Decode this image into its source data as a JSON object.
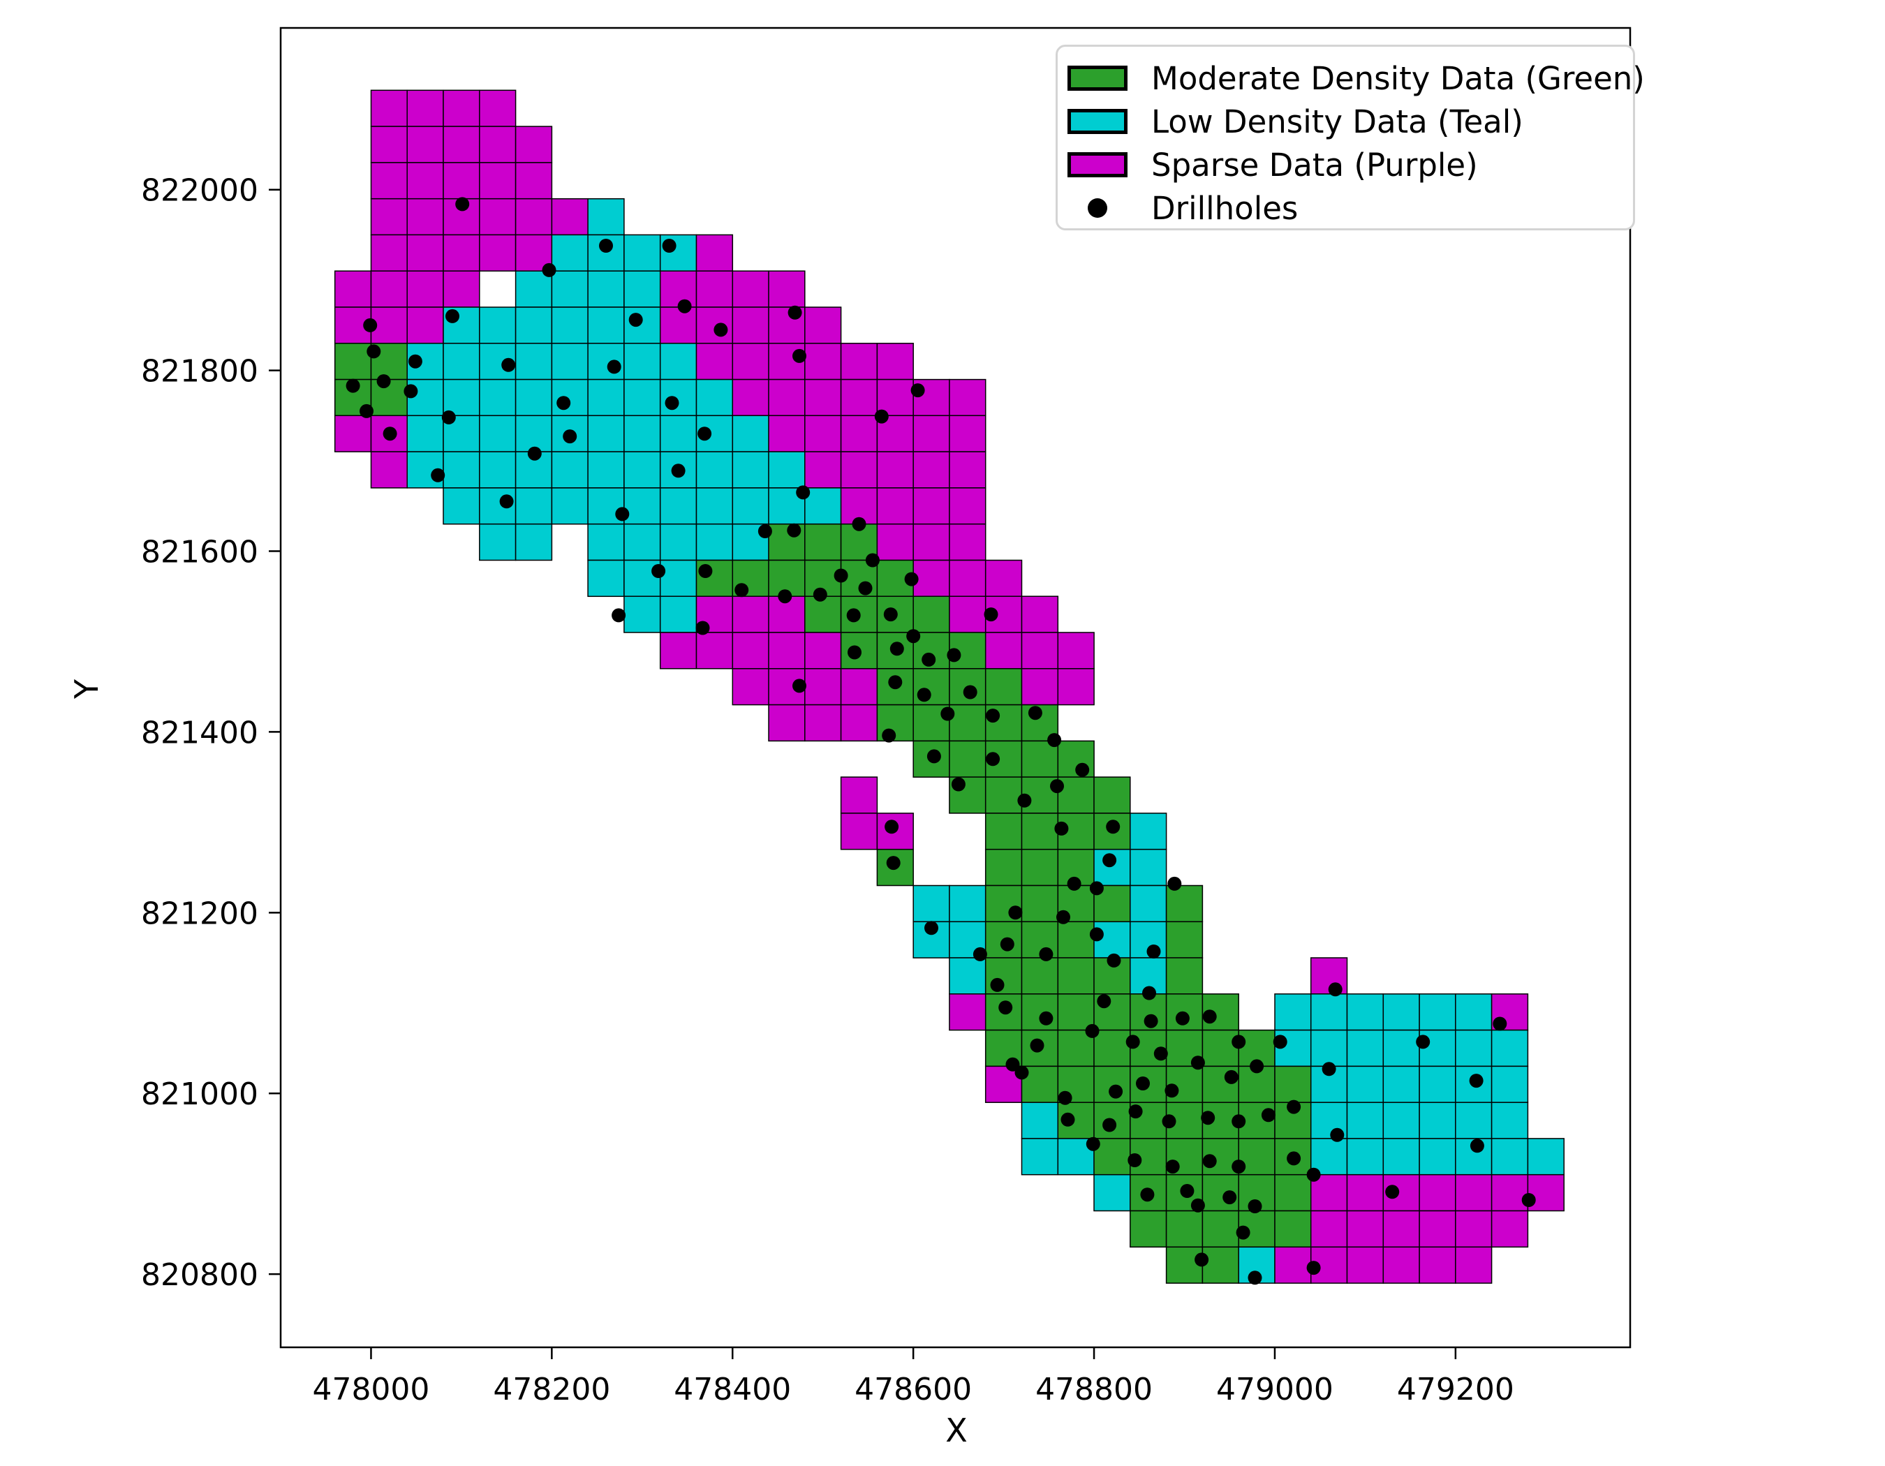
{
  "chart_data": {
    "type": "heatmap",
    "title": "",
    "xlabel": "X",
    "ylabel": "Y",
    "xlim": [
      477900,
      479393
    ],
    "ylim": [
      820709,
      822179
    ],
    "xticks": [
      478000,
      478200,
      478400,
      478600,
      478800,
      479000,
      479200
    ],
    "yticks": [
      820800,
      821000,
      821200,
      821400,
      821600,
      821800,
      822000
    ],
    "grid_origin": {
      "x_left": 477960,
      "y_top": 822110,
      "cell_size": 40
    },
    "legend_position": "upper right",
    "colors": {
      "G": "#2CA02C",
      "T": "#00CDD1",
      "M": "#CC00CC",
      "drillhole": "#000000",
      "cell_edge": "#000000"
    },
    "classes": {
      "G": "Moderate Density Data (Green)",
      "T": "Low Density Data (Teal)",
      "M": "Sparse Data (Purple)"
    },
    "rows": [
      {
        "j": 0,
        "runs": [
          [
            "M",
            1,
            4
          ]
        ]
      },
      {
        "j": 1,
        "runs": [
          [
            "M",
            1,
            5
          ]
        ]
      },
      {
        "j": 2,
        "runs": [
          [
            "M",
            1,
            5
          ]
        ]
      },
      {
        "j": 3,
        "runs": [
          [
            "M",
            1,
            6
          ],
          [
            "T",
            7,
            7
          ]
        ]
      },
      {
        "j": 4,
        "runs": [
          [
            "M",
            1,
            5
          ],
          [
            "T",
            6,
            9
          ],
          [
            "M",
            10,
            10
          ]
        ]
      },
      {
        "j": 5,
        "runs": [
          [
            "M",
            0,
            3
          ],
          [
            "T",
            5,
            8
          ],
          [
            "M",
            9,
            12
          ]
        ]
      },
      {
        "j": 6,
        "runs": [
          [
            "M",
            0,
            2
          ],
          [
            "T",
            3,
            8
          ],
          [
            "M",
            9,
            13
          ]
        ]
      },
      {
        "j": 7,
        "runs": [
          [
            "G",
            0,
            1
          ],
          [
            "T",
            2,
            9
          ],
          [
            "M",
            10,
            15
          ]
        ]
      },
      {
        "j": 8,
        "runs": [
          [
            "G",
            0,
            1
          ],
          [
            "T",
            2,
            10
          ],
          [
            "M",
            11,
            17
          ]
        ]
      },
      {
        "j": 9,
        "runs": [
          [
            "M",
            0,
            1
          ],
          [
            "T",
            2,
            11
          ],
          [
            "M",
            12,
            17
          ]
        ]
      },
      {
        "j": 10,
        "runs": [
          [
            "M",
            1,
            1
          ],
          [
            "T",
            2,
            12
          ],
          [
            "M",
            13,
            17
          ]
        ]
      },
      {
        "j": 11,
        "runs": [
          [
            "T",
            3,
            13
          ],
          [
            "M",
            14,
            17
          ]
        ]
      },
      {
        "j": 12,
        "runs": [
          [
            "T",
            4,
            5
          ],
          [
            "T",
            7,
            11
          ],
          [
            "G",
            12,
            14
          ],
          [
            "M",
            15,
            17
          ]
        ]
      },
      {
        "j": 13,
        "runs": [
          [
            "T",
            7,
            9
          ],
          [
            "G",
            10,
            15
          ],
          [
            "M",
            16,
            18
          ]
        ]
      },
      {
        "j": 14,
        "runs": [
          [
            "T",
            8,
            9
          ],
          [
            "M",
            10,
            12
          ],
          [
            "G",
            13,
            16
          ],
          [
            "M",
            17,
            19
          ]
        ]
      },
      {
        "j": 15,
        "runs": [
          [
            "M",
            9,
            13
          ],
          [
            "G",
            14,
            17
          ],
          [
            "M",
            18,
            20
          ]
        ]
      },
      {
        "j": 16,
        "runs": [
          [
            "M",
            11,
            14
          ],
          [
            "G",
            15,
            18
          ],
          [
            "M",
            19,
            20
          ]
        ]
      },
      {
        "j": 17,
        "runs": [
          [
            "M",
            12,
            14
          ],
          [
            "G",
            15,
            19
          ]
        ]
      },
      {
        "j": 18,
        "runs": [
          [
            "G",
            16,
            20
          ]
        ]
      },
      {
        "j": 19,
        "runs": [
          [
            "M",
            14,
            14
          ],
          [
            "G",
            17,
            21
          ]
        ]
      },
      {
        "j": 20,
        "runs": [
          [
            "M",
            14,
            15
          ],
          [
            "G",
            18,
            21
          ],
          [
            "T",
            22,
            22
          ]
        ]
      },
      {
        "j": 21,
        "runs": [
          [
            "G",
            15,
            15
          ],
          [
            "G",
            18,
            20
          ],
          [
            "T",
            21,
            22
          ]
        ]
      },
      {
        "j": 22,
        "runs": [
          [
            "T",
            16,
            17
          ],
          [
            "G",
            18,
            21
          ],
          [
            "T",
            22,
            22
          ],
          [
            "G",
            23,
            23
          ]
        ]
      },
      {
        "j": 23,
        "runs": [
          [
            "T",
            16,
            17
          ],
          [
            "G",
            18,
            20
          ],
          [
            "T",
            21,
            22
          ],
          [
            "G",
            23,
            23
          ]
        ]
      },
      {
        "j": 24,
        "runs": [
          [
            "T",
            17,
            17
          ],
          [
            "G",
            18,
            21
          ],
          [
            "T",
            22,
            22
          ],
          [
            "G",
            23,
            23
          ],
          [
            "M",
            27,
            27
          ]
        ]
      },
      {
        "j": 25,
        "runs": [
          [
            "M",
            17,
            17
          ],
          [
            "G",
            18,
            24
          ],
          [
            "T",
            26,
            31
          ],
          [
            "M",
            32,
            32
          ]
        ]
      },
      {
        "j": 26,
        "runs": [
          [
            "G",
            18,
            25
          ],
          [
            "T",
            26,
            32
          ]
        ]
      },
      {
        "j": 27,
        "runs": [
          [
            "M",
            18,
            18
          ],
          [
            "G",
            19,
            26
          ],
          [
            "T",
            27,
            32
          ]
        ]
      },
      {
        "j": 28,
        "runs": [
          [
            "T",
            19,
            19
          ],
          [
            "G",
            20,
            26
          ],
          [
            "T",
            27,
            32
          ]
        ]
      },
      {
        "j": 29,
        "runs": [
          [
            "T",
            19,
            20
          ],
          [
            "G",
            21,
            26
          ],
          [
            "T",
            27,
            33
          ]
        ]
      },
      {
        "j": 30,
        "runs": [
          [
            "T",
            21,
            21
          ],
          [
            "G",
            22,
            26
          ],
          [
            "M",
            27,
            33
          ]
        ]
      },
      {
        "j": 31,
        "runs": [
          [
            "G",
            22,
            26
          ],
          [
            "M",
            27,
            32
          ]
        ]
      },
      {
        "j": 32,
        "runs": [
          [
            "G",
            23,
            24
          ],
          [
            "T",
            25,
            25
          ],
          [
            "M",
            26,
            31
          ]
        ]
      }
    ],
    "drillholes": [
      [
        478101,
        821984
      ],
      [
        478260,
        821938
      ],
      [
        478330,
        821938
      ],
      [
        478197,
        821911
      ],
      [
        478347,
        821871
      ],
      [
        477999,
        821850
      ],
      [
        478090,
        821860
      ],
      [
        478293,
        821856
      ],
      [
        478387,
        821845
      ],
      [
        478469,
        821864
      ],
      [
        478003,
        821821
      ],
      [
        478049,
        821810
      ],
      [
        477980,
        821783
      ],
      [
        478014,
        821788
      ],
      [
        478044,
        821777
      ],
      [
        477995,
        821755
      ],
      [
        478021,
        821730
      ],
      [
        478074,
        821684
      ],
      [
        478152,
        821806
      ],
      [
        478269,
        821804
      ],
      [
        478213,
        821764
      ],
      [
        478333,
        821764
      ],
      [
        478605,
        821778
      ],
      [
        478474,
        821816
      ],
      [
        478220,
        821727
      ],
      [
        478369,
        821730
      ],
      [
        478565,
        821749
      ],
      [
        478181,
        821708
      ],
      [
        478340,
        821689
      ],
      [
        478086,
        821748
      ],
      [
        478150,
        821655
      ],
      [
        478278,
        821641
      ],
      [
        478478,
        821665
      ],
      [
        478436,
        821622
      ],
      [
        478468,
        821623
      ],
      [
        478540,
        821630
      ],
      [
        478555,
        821590
      ],
      [
        478318,
        821578
      ],
      [
        478370,
        821578
      ],
      [
        478410,
        821557
      ],
      [
        478458,
        821550
      ],
      [
        478497,
        821552
      ],
      [
        478520,
        821573
      ],
      [
        478547,
        821559
      ],
      [
        478598,
        821569
      ],
      [
        478274,
        821529
      ],
      [
        478367,
        821515
      ],
      [
        478534,
        821529
      ],
      [
        478575,
        821530
      ],
      [
        478600,
        821506
      ],
      [
        478686,
        821530
      ],
      [
        478535,
        821488
      ],
      [
        478582,
        821492
      ],
      [
        478617,
        821480
      ],
      [
        478645,
        821485
      ],
      [
        478474,
        821451
      ],
      [
        478580,
        821455
      ],
      [
        478612,
        821441
      ],
      [
        478663,
        821444
      ],
      [
        478573,
        821396
      ],
      [
        478638,
        821420
      ],
      [
        478688,
        821418
      ],
      [
        478735,
        821421
      ],
      [
        478756,
        821391
      ],
      [
        478623,
        821373
      ],
      [
        478688,
        821370
      ],
      [
        478787,
        821358
      ],
      [
        478650,
        821342
      ],
      [
        478723,
        821324
      ],
      [
        478759,
        821340
      ],
      [
        478576,
        821295
      ],
      [
        478578,
        821255
      ],
      [
        478764,
        821293
      ],
      [
        478821,
        821295
      ],
      [
        478778,
        821232
      ],
      [
        478817,
        821258
      ],
      [
        478713,
        821200
      ],
      [
        478766,
        821195
      ],
      [
        478803,
        821227
      ],
      [
        478889,
        821232
      ],
      [
        478620,
        821183
      ],
      [
        478674,
        821154
      ],
      [
        478704,
        821165
      ],
      [
        478747,
        821154
      ],
      [
        478803,
        821176
      ],
      [
        478866,
        821157
      ],
      [
        478822,
        821147
      ],
      [
        478693,
        821120
      ],
      [
        478861,
        821111
      ],
      [
        479067,
        821115
      ],
      [
        478702,
        821095
      ],
      [
        478747,
        821083
      ],
      [
        478811,
        821102
      ],
      [
        478863,
        821080
      ],
      [
        478898,
        821083
      ],
      [
        478928,
        821085
      ],
      [
        478710,
        821032
      ],
      [
        478737,
        821053
      ],
      [
        478798,
        821069
      ],
      [
        478843,
        821057
      ],
      [
        478874,
        821044
      ],
      [
        478960,
        821057
      ],
      [
        479006,
        821057
      ],
      [
        479164,
        821057
      ],
      [
        479249,
        821077
      ],
      [
        478720,
        821023
      ],
      [
        478768,
        820995
      ],
      [
        478824,
        821002
      ],
      [
        478854,
        821011
      ],
      [
        478886,
        821003
      ],
      [
        478915,
        821034
      ],
      [
        478952,
        821018
      ],
      [
        478980,
        821030
      ],
      [
        479060,
        821027
      ],
      [
        479223,
        821014
      ],
      [
        478771,
        820971
      ],
      [
        478817,
        820965
      ],
      [
        478846,
        820980
      ],
      [
        478883,
        820969
      ],
      [
        478926,
        820973
      ],
      [
        478960,
        820969
      ],
      [
        478993,
        820976
      ],
      [
        479021,
        820985
      ],
      [
        478845,
        820926
      ],
      [
        478887,
        820919
      ],
      [
        478928,
        820925
      ],
      [
        478960,
        820919
      ],
      [
        479021,
        820928
      ],
      [
        479043,
        820910
      ],
      [
        479069,
        820954
      ],
      [
        479224,
        820942
      ],
      [
        478799,
        820944
      ],
      [
        478859,
        820888
      ],
      [
        478903,
        820892
      ],
      [
        478950,
        820885
      ],
      [
        478915,
        820876
      ],
      [
        478978,
        820875
      ],
      [
        479130,
        820891
      ],
      [
        479281,
        820882
      ],
      [
        478965,
        820846
      ],
      [
        478919,
        820816
      ],
      [
        479043,
        820807
      ],
      [
        478978,
        820796
      ]
    ]
  },
  "legend": {
    "items": [
      {
        "type": "swatch",
        "class": "G",
        "label": "Moderate Density Data (Green)"
      },
      {
        "type": "swatch",
        "class": "T",
        "label": "Low Density Data (Teal)"
      },
      {
        "type": "swatch",
        "class": "M",
        "label": "Sparse Data (Purple)"
      },
      {
        "type": "marker",
        "class": "drillhole",
        "label": "Drillholes"
      }
    ]
  }
}
